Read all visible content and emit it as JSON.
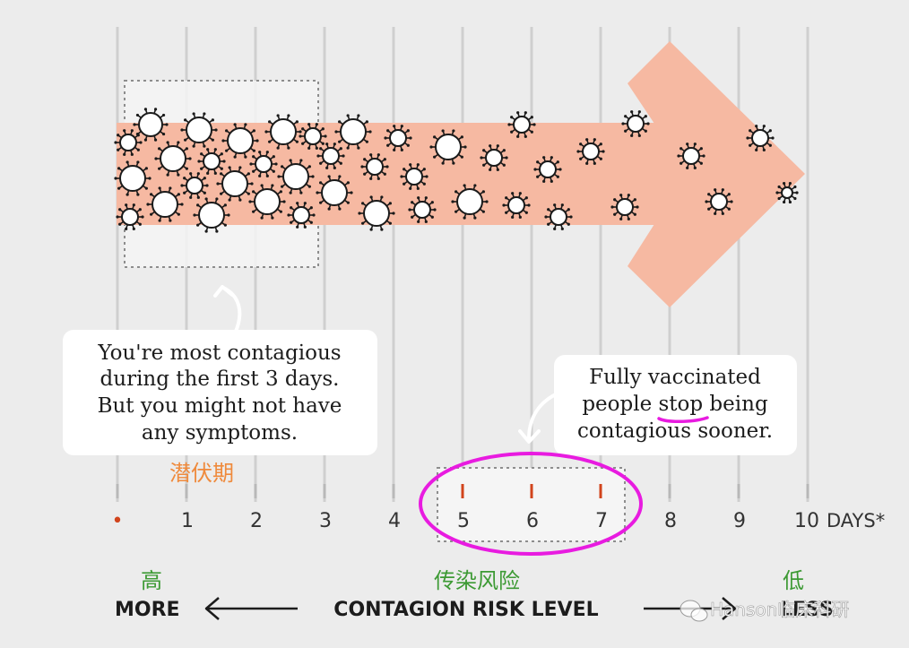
{
  "axis": {
    "zero_marker": "•",
    "ticks": [
      "1",
      "2",
      "3",
      "4",
      "5",
      "6",
      "7",
      "8",
      "9",
      "10"
    ],
    "unit": "DAYS*"
  },
  "callout_left": {
    "lines": [
      "You're most contagious",
      "during the first 3 days.",
      "But you might not have",
      "any symptoms."
    ]
  },
  "callout_right": {
    "lines": [
      "Fully vaccinated",
      "people ",
      "stop",
      " being",
      "contagious sooner."
    ]
  },
  "labels": {
    "incubation_cn": "潜伏期",
    "risk_cn": "传染风险",
    "high_cn": "高",
    "low_cn": "低",
    "more": "MORE",
    "contagion_risk_level": "CONTAGION RISK LEVEL",
    "less": "LESS"
  },
  "watermark": {
    "text": "Hanson临床科研"
  },
  "colors": {
    "arrow_fill": "#f6b9a2",
    "highlight_circle": "#e81be0",
    "incubation_text": "#ef8a3c",
    "risk_text": "#3d9a34",
    "tick_red": "#d1441c"
  }
}
